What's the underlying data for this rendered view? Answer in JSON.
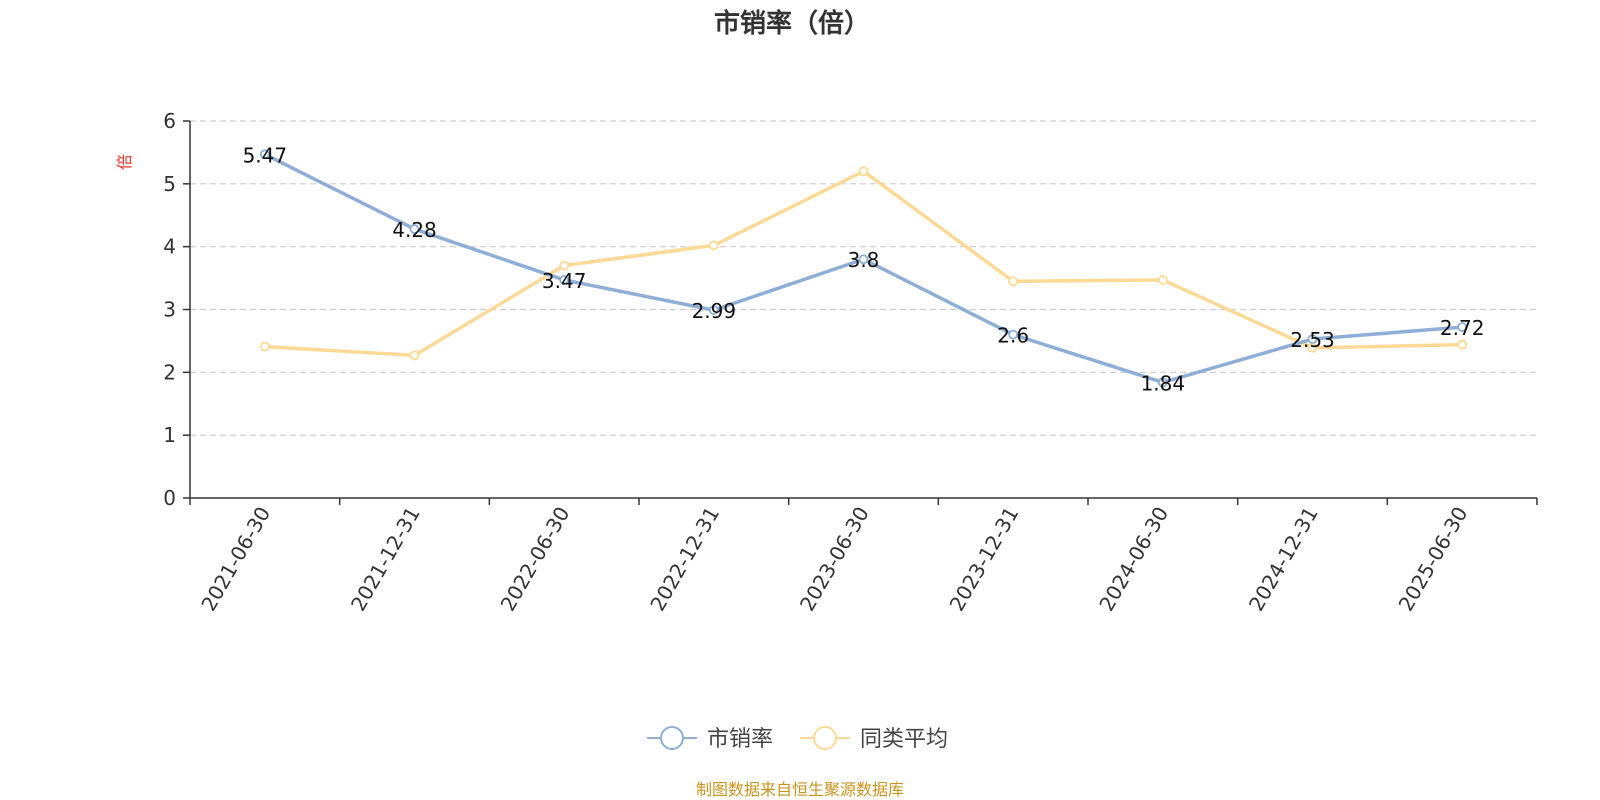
{
  "chart_data": {
    "type": "line",
    "title": "市销率（倍）",
    "y_unit": "倍",
    "categories": [
      "2021-06-30",
      "2021-12-31",
      "2022-06-30",
      "2022-12-31",
      "2023-06-30",
      "2023-12-31",
      "2024-06-30",
      "2024-12-31",
      "2025-06-30"
    ],
    "series": [
      {
        "name": "市销率",
        "color": "#8eaed8",
        "values": [
          5.47,
          4.28,
          3.47,
          2.99,
          3.8,
          2.6,
          1.84,
          2.53,
          2.72
        ],
        "labels": [
          "5.47",
          "4.28",
          "3.47",
          "2.99",
          "3.8",
          "2.6",
          "1.84",
          "2.53",
          "2.72"
        ]
      },
      {
        "name": "同类平均",
        "color": "#fcd994",
        "values": [
          2.41,
          2.27,
          3.7,
          4.02,
          5.2,
          3.45,
          3.47,
          2.39,
          2.44
        ]
      }
    ],
    "ylim": [
      0,
      6
    ],
    "yticks": [
      "0",
      "1",
      "2",
      "3",
      "4",
      "5",
      "6"
    ],
    "grid": true,
    "legend_position": "bottom-center",
    "unit_color": "#e8352b"
  },
  "footer": {
    "source": "制图数据来自恒生聚源数据库",
    "color": "#c9941e"
  }
}
